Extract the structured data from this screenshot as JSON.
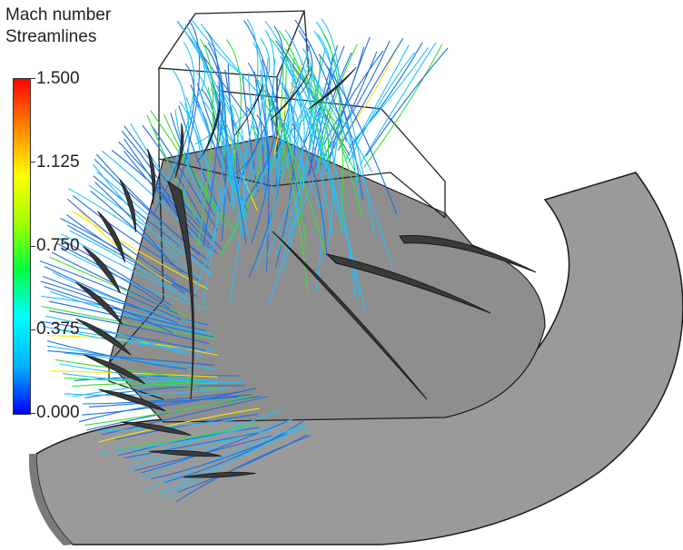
{
  "legend": {
    "title_line1": "Mach number",
    "title_line2": "Streamlines",
    "ticks": [
      "1.500",
      "1.125",
      "0.750",
      "0.375",
      "0.000"
    ],
    "colormap": [
      "#0000ff",
      "#00b0ff",
      "#00ffff",
      "#00ff40",
      "#a0ff00",
      "#ffff00",
      "#ff8000",
      "#ff0000"
    ]
  },
  "colors": {
    "surface": "#9a9a9a",
    "surface_dark": "#6f6f6f",
    "blade": "#3a3a3a",
    "edge": "#1a1a1a",
    "stream_low": "#1e6fe0",
    "stream_mid": "#23c0ff",
    "stream_high": "#36e03a",
    "stream_peak": "#ffe600"
  }
}
